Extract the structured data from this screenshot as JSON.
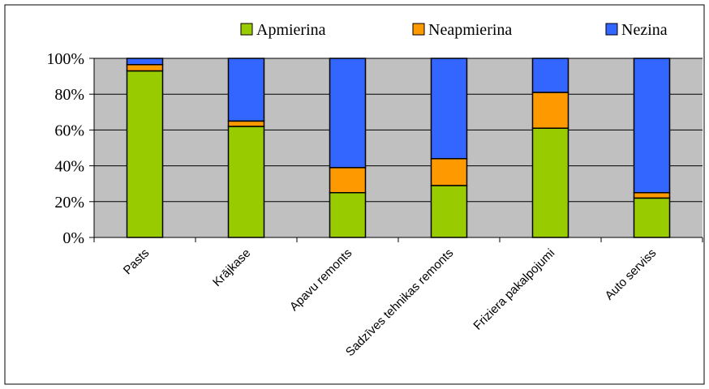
{
  "chart_data": {
    "type": "bar",
    "stacked": true,
    "categories": [
      "Pasts",
      "Krājkase",
      "Apavu remonts",
      "Sadzīves tehnikas remonts",
      "Friziera pakalpojumi",
      "Auto serviss"
    ],
    "series": [
      {
        "name": "Apmierina",
        "color": "#99cc00",
        "values": [
          93,
          62,
          25,
          29,
          61,
          22
        ]
      },
      {
        "name": "Neapmierina",
        "color": "#ff9900",
        "values": [
          3.5,
          3,
          14,
          15,
          20,
          3
        ]
      },
      {
        "name": "Nezina",
        "color": "#3366ff",
        "values": [
          3.5,
          35,
          61,
          56,
          19,
          75
        ]
      }
    ],
    "yticks": [
      "0%",
      "20%",
      "40%",
      "60%",
      "80%",
      "100%"
    ],
    "ylim": [
      0,
      100
    ],
    "grid": true,
    "legend": "top",
    "plot_background": "#c0c0c0"
  }
}
